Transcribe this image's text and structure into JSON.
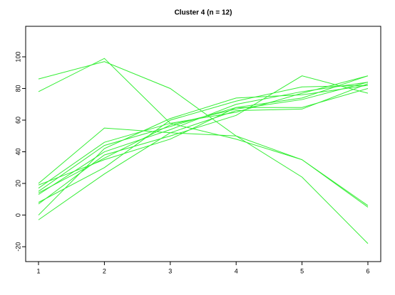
{
  "chart_data": {
    "type": "line",
    "title": "Cluster 4 (n = 12)",
    "x": [
      1,
      2,
      3,
      4,
      5,
      6
    ],
    "xlim": [
      0.805,
      6.195
    ],
    "xticks": [
      1,
      2,
      3,
      4,
      5,
      6
    ],
    "ylim": [
      -29.4,
      119.3
    ],
    "yticks": [
      -20,
      0,
      20,
      40,
      60,
      80,
      100
    ],
    "series": [
      {
        "color": "#33ee33",
        "values": [
          86,
          97,
          80,
          50,
          24,
          -18
        ]
      },
      {
        "color": "#33ee33",
        "values": [
          78,
          99,
          58,
          48,
          35,
          5
        ]
      },
      {
        "color": "#33ee33",
        "values": [
          20,
          55,
          52,
          50,
          35,
          6
        ]
      },
      {
        "color": "#33ee33",
        "values": [
          17,
          46,
          58,
          65,
          77,
          88
        ]
      },
      {
        "color": "#33ee33",
        "values": [
          15,
          44,
          56,
          68,
          74,
          88
        ]
      },
      {
        "color": "#33ee33",
        "values": [
          13,
          40,
          54,
          70,
          78,
          84
        ]
      },
      {
        "color": "#33ee33",
        "values": [
          7,
          38,
          50,
          63,
          88,
          77
        ]
      },
      {
        "color": "#33ee33",
        "values": [
          0,
          42,
          61,
          74,
          76,
          82
        ]
      },
      {
        "color": "#33ee33",
        "values": [
          -3,
          26,
          52,
          66,
          67,
          83
        ]
      },
      {
        "color": "#33ee33",
        "values": [
          19,
          35,
          48,
          68,
          68,
          80
        ]
      },
      {
        "color": "#33ee33",
        "values": [
          8,
          30,
          60,
          72,
          81,
          82
        ]
      },
      {
        "color": "#33ee33",
        "values": [
          14,
          36,
          57,
          67,
          73,
          84
        ]
      }
    ]
  }
}
